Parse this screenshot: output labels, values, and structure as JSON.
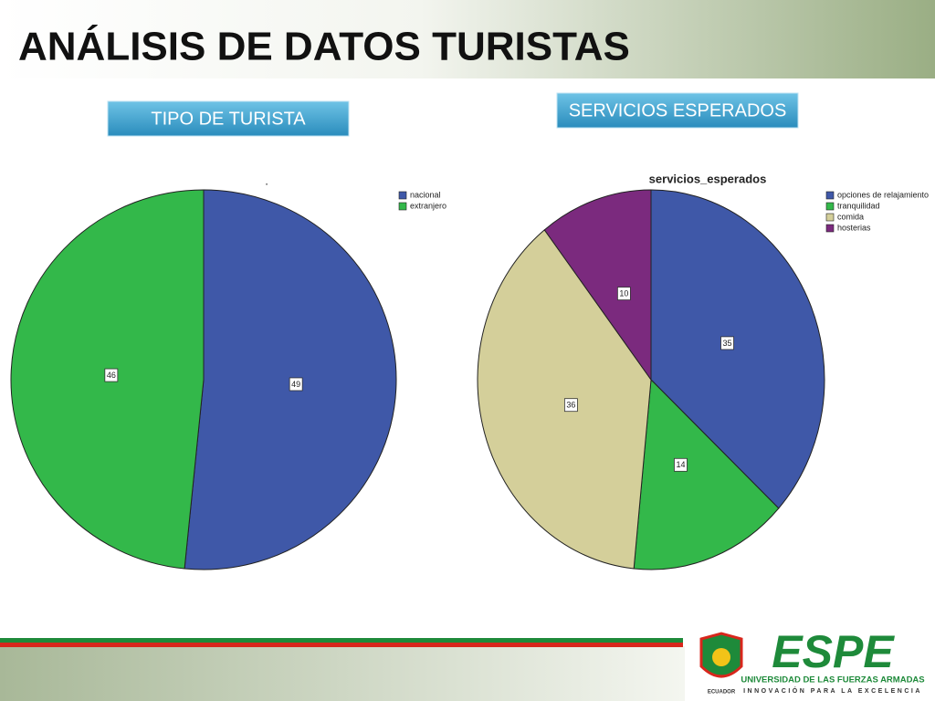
{
  "header": {
    "title": "ANÁLISIS DE DATOS TURISTAS"
  },
  "buttons": [
    "TIPO DE TURISTA",
    "SERVICIOS ESPERADOS"
  ],
  "logo": {
    "name": "ESPE",
    "line1": "UNIVERSIDAD DE LAS FUERZAS ARMADAS",
    "line2": "INNOVACIÓN PARA LA EXCELENCIA",
    "country": "ECUADOR"
  },
  "chart_data": [
    {
      "type": "pie",
      "title": ".",
      "categories": [
        "nacional",
        "extranjero"
      ],
      "values": [
        49,
        46
      ],
      "colors": [
        "#3f58a8",
        "#33b84a"
      ]
    },
    {
      "type": "pie",
      "title": "servicios_esperados",
      "categories": [
        "opciones de relajamiento",
        "tranquilidad",
        "comida",
        "hosterias"
      ],
      "values": [
        35,
        14,
        36,
        10
      ],
      "colors": [
        "#3f58a8",
        "#33b84a",
        "#d4cf9a",
        "#7b2a7e"
      ]
    }
  ]
}
